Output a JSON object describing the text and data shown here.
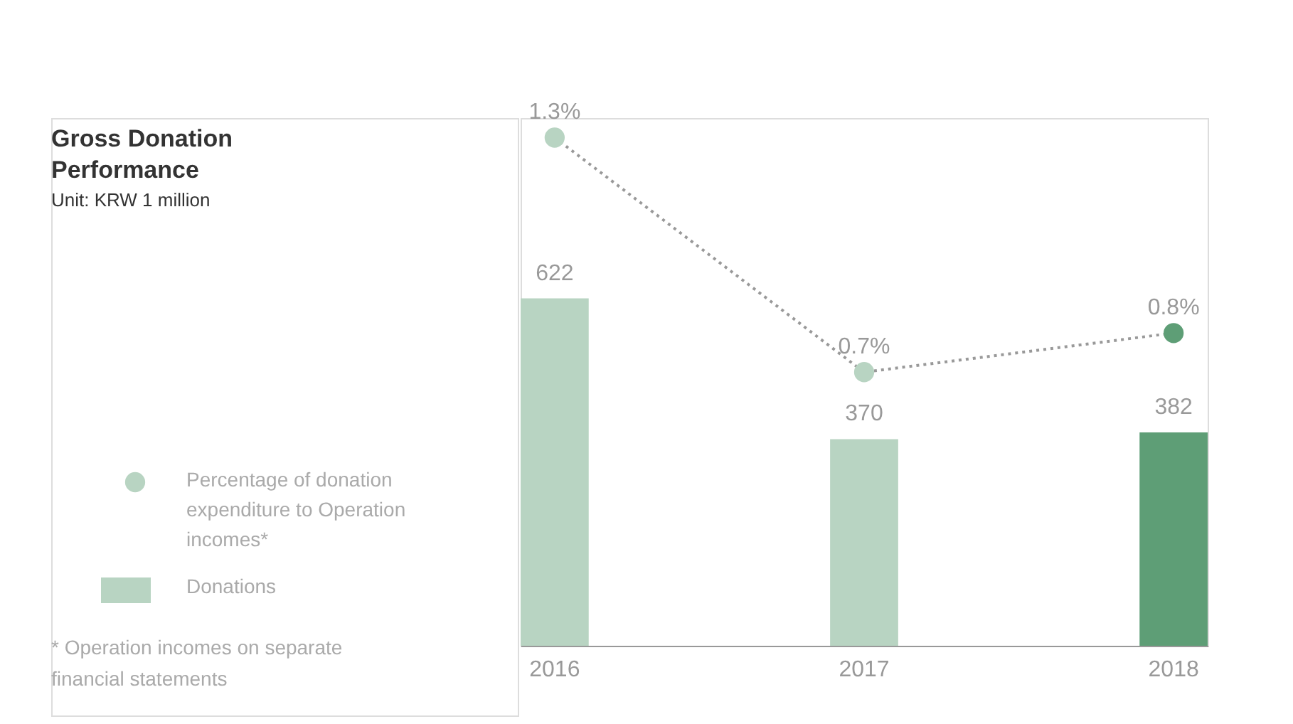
{
  "chart_data": {
    "type": "bar",
    "title": "Gross Donation Performance",
    "subtitle": "Unit: KRW 1 million",
    "categories": [
      "2016",
      "2017",
      "2018"
    ],
    "series": [
      {
        "name": "Donations",
        "color": "#b8d4c2",
        "colors": [
          "#b8d4c2",
          "#b8d4c2",
          "#5e9e76"
        ],
        "values": [
          622,
          370,
          382
        ],
        "value_labels": [
          "622",
          "370",
          "382"
        ]
      },
      {
        "name": "Percentage of donation expenditure to Operation incomes*",
        "type": "line",
        "axis": "y2",
        "color": "#999999",
        "colors": [
          "#b8d4c2",
          "#b8d4c2",
          "#5e9e76"
        ],
        "values": [
          1.3,
          0.7,
          0.8
        ],
        "value_labels": [
          "1.3%",
          "0.7%",
          "0.8%"
        ],
        "marker": "circle",
        "line_style": "dotted"
      }
    ],
    "ylim": [
      0,
      945
    ],
    "y2lim": [
      0,
      1.35
    ],
    "tick_labels": "x",
    "grid": false,
    "legend": "left",
    "annotations": [
      "* Operation incomes on separate financial statements"
    ]
  }
}
